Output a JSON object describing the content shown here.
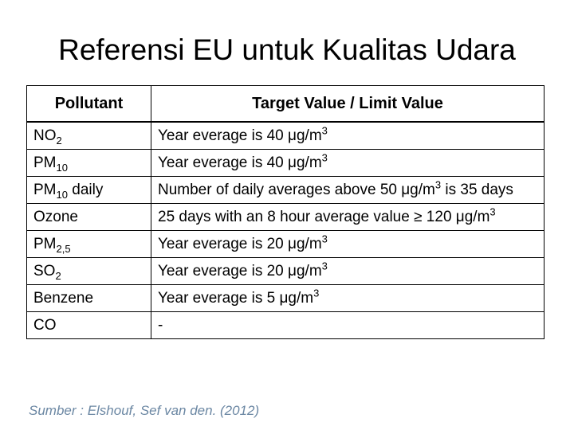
{
  "title": "Referensi EU untuk Kualitas Udara",
  "table": {
    "header": [
      "Pollutant",
      "Target Value / Limit Value"
    ],
    "rows": [
      [
        [
          {
            "text": "NO"
          },
          {
            "sub": "2"
          }
        ],
        [
          {
            "text": "Year everage is 40 μg/m"
          },
          {
            "sup": "3"
          }
        ]
      ],
      [
        [
          {
            "text": "PM"
          },
          {
            "sub": "10"
          }
        ],
        [
          {
            "text": "Year everage is 40 μg/m"
          },
          {
            "sup": "3"
          }
        ]
      ],
      [
        [
          {
            "text": "PM"
          },
          {
            "sub": "10"
          },
          {
            "text": " daily"
          }
        ],
        [
          {
            "text": "Number of daily averages above 50 μg/m"
          },
          {
            "sup": "3"
          },
          {
            "text": " is 35 days"
          }
        ]
      ],
      [
        [
          {
            "text": "Ozone"
          }
        ],
        [
          {
            "text": "25 days with an 8 hour average value ≥ 120 μg/m"
          },
          {
            "sup": "3"
          }
        ]
      ],
      [
        [
          {
            "text": "PM"
          },
          {
            "sub": "2,5"
          }
        ],
        [
          {
            "text": "Year everage is 20 μg/m"
          },
          {
            "sup": "3"
          }
        ]
      ],
      [
        [
          {
            "text": "SO"
          },
          {
            "sub": "2"
          }
        ],
        [
          {
            "text": "Year everage is 20 μg/m"
          },
          {
            "sup": "3"
          }
        ]
      ],
      [
        [
          {
            "text": "Benzene"
          }
        ],
        [
          {
            "text": "Year everage is 5 μg/m"
          },
          {
            "sup": "3"
          }
        ]
      ],
      [
        [
          {
            "text": "CO"
          }
        ],
        [
          {
            "text": " -"
          }
        ]
      ]
    ]
  },
  "source": "Sumber : Elshouf, Sef van den. (2012)"
}
